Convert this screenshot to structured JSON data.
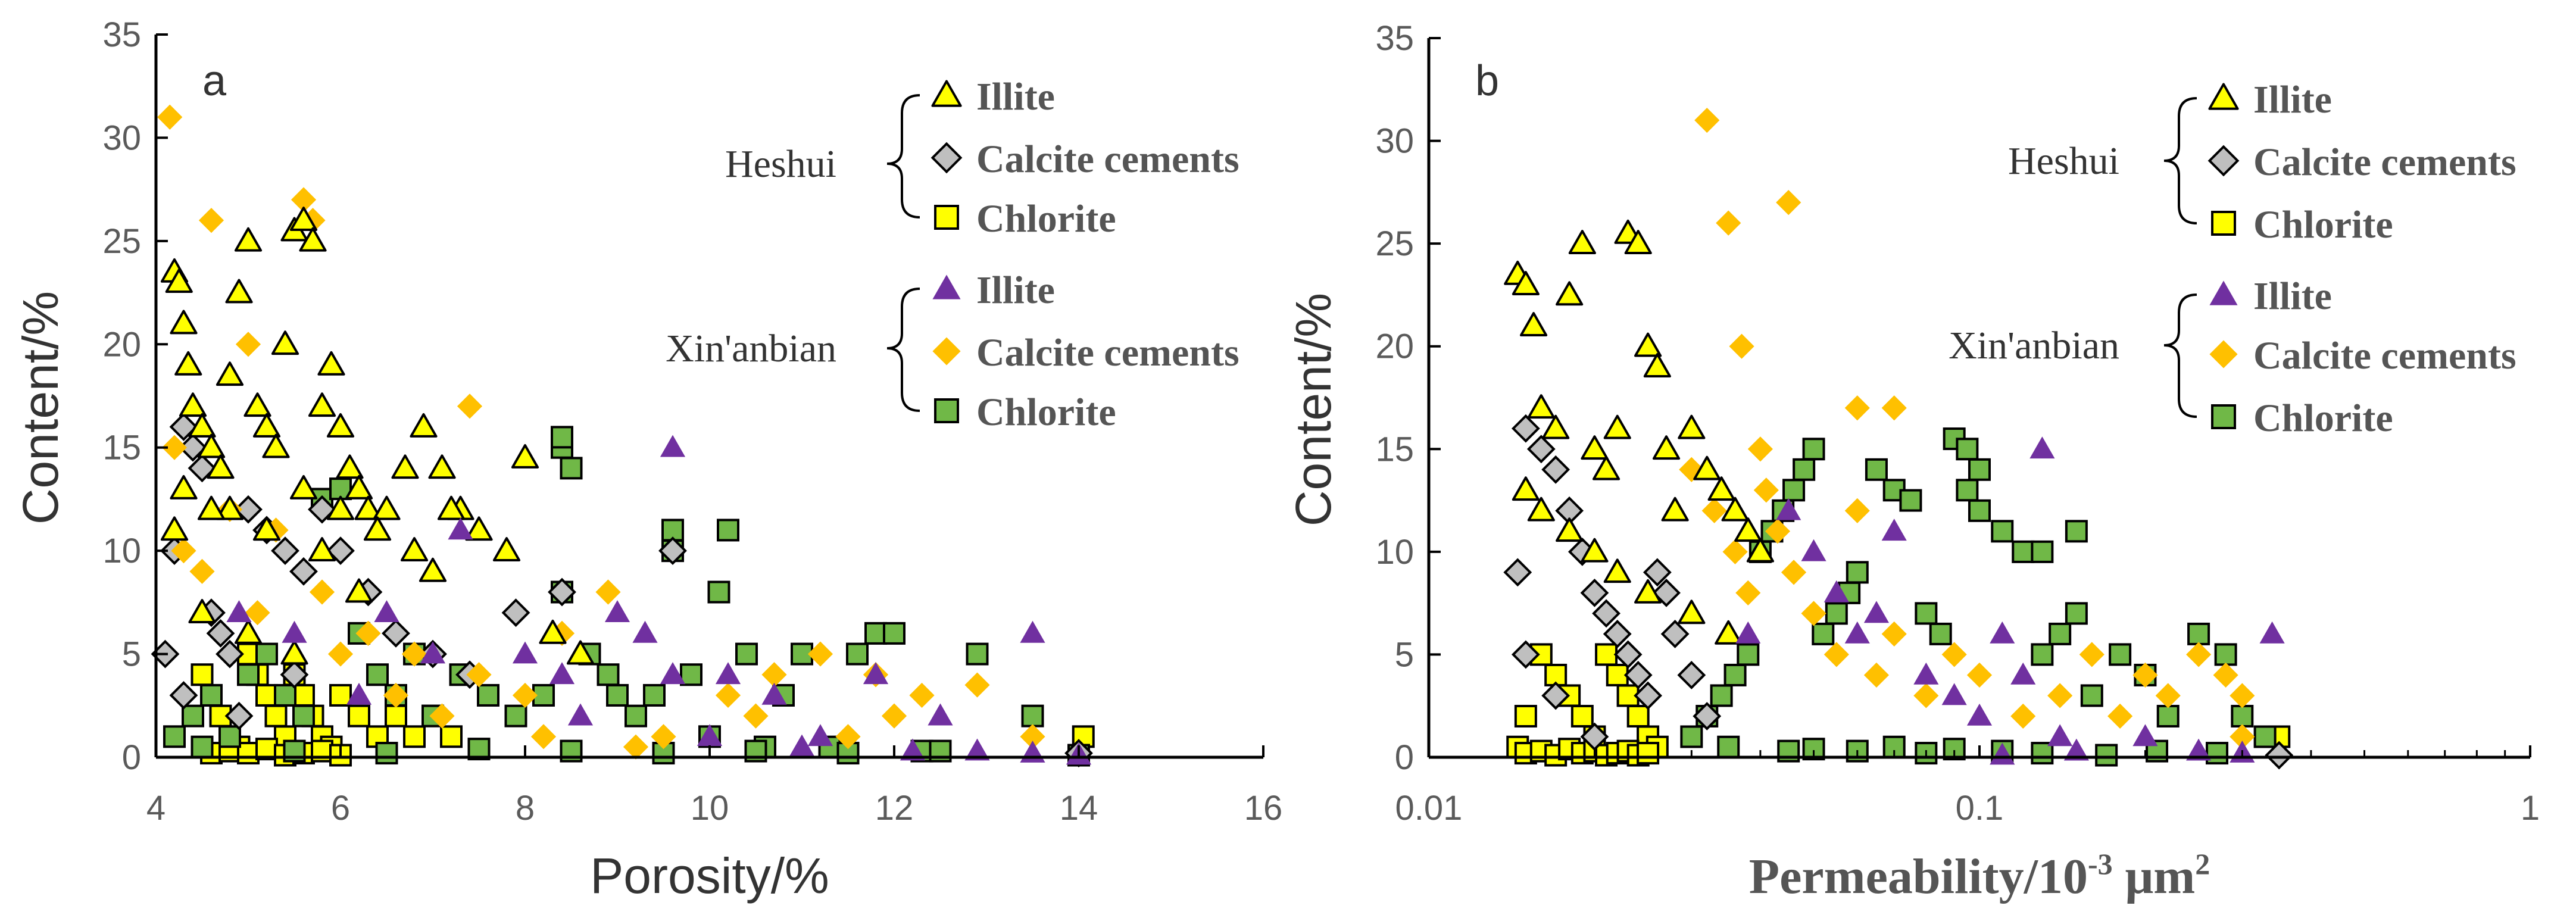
{
  "colors": {
    "illite_heshui": "#ffff00",
    "calcite_heshui": "#bfbfbf",
    "chlorite_heshui": "#ffff00",
    "illite_xinanbian": "#7030a0",
    "calcite_xinanbian": "#ffc000",
    "chlorite_xinanbian": "#70b847",
    "outline": "#000000"
  },
  "legend": {
    "groups": [
      {
        "name": "Heshui",
        "items": [
          {
            "label": "Illite",
            "marker": "triangle-icon",
            "color_key": "illite_heshui",
            "outline": true
          },
          {
            "label": "Calcite cements",
            "marker": "diamond-icon",
            "color_key": "calcite_heshui",
            "outline": true
          },
          {
            "label": "Chlorite",
            "marker": "square-icon",
            "color_key": "chlorite_heshui",
            "outline": true
          }
        ]
      },
      {
        "name": "Xin'anbian",
        "items": [
          {
            "label": "Illite",
            "marker": "triangle-icon",
            "color_key": "illite_xinanbian",
            "outline": false
          },
          {
            "label": "Calcite cements",
            "marker": "diamond-icon",
            "color_key": "calcite_xinanbian",
            "outline": false
          },
          {
            "label": "Chlorite",
            "marker": "square-icon",
            "color_key": "chlorite_xinanbian",
            "outline": true
          }
        ]
      }
    ]
  },
  "chart_data": [
    {
      "panel": "a",
      "type": "scatter",
      "xscale": "linear",
      "xlabel": "Porosity/%",
      "ylabel": "Content/%",
      "xlim": [
        4,
        16
      ],
      "ylim": [
        0,
        35
      ],
      "xticks": [
        4,
        6,
        8,
        10,
        12,
        14,
        16
      ],
      "xtick_labels": [
        "4",
        "6",
        "8",
        "10",
        "12",
        "14",
        "16"
      ],
      "yticks": [
        0,
        5,
        10,
        15,
        20,
        25,
        30,
        35
      ],
      "ytick_labels": [
        "0",
        "5",
        "10",
        "15",
        "20",
        "25",
        "30",
        "35"
      ],
      "series": [
        {
          "name": "Heshui Illite",
          "marker": "triangle",
          "color_key": "illite_heshui",
          "x": [
            4.2,
            4.25,
            4.3,
            4.35,
            4.4,
            4.5,
            4.6,
            4.7,
            4.8,
            4.9,
            5.0,
            5.1,
            5.2,
            5.3,
            5.4,
            5.5,
            5.6,
            5.7,
            5.8,
            5.9,
            6.0,
            6.1,
            6.2,
            6.3,
            6.5,
            6.7,
            6.9,
            7.1,
            7.3,
            7.5,
            7.8,
            8.0,
            8.3,
            8.6,
            4.3,
            4.8,
            5.2,
            5.6,
            6.0,
            6.4,
            6.8,
            7.2,
            4.5,
            5.0,
            5.5,
            6.2,
            7.0,
            4.2,
            4.6,
            5.8
          ],
          "y": [
            23.5,
            23,
            21,
            19,
            17,
            16,
            15,
            14,
            18.5,
            22.5,
            25,
            17,
            16,
            15,
            20,
            25.5,
            26,
            25,
            17,
            19,
            16,
            14,
            13,
            12,
            12,
            14,
            16,
            14,
            12,
            11,
            10,
            14.5,
            6,
            5,
            13,
            12,
            11,
            13,
            12,
            11,
            10,
            12,
            7,
            6,
            5,
            8,
            9,
            11,
            12,
            10
          ]
        },
        {
          "name": "Heshui Calcite cements",
          "marker": "diamond",
          "color_key": "calcite_heshui",
          "x": [
            4.1,
            4.2,
            4.3,
            4.4,
            4.5,
            4.6,
            4.7,
            4.8,
            5.0,
            5.2,
            5.4,
            5.6,
            5.8,
            6.0,
            6.3,
            6.6,
            7.0,
            7.4,
            7.9,
            8.4,
            9.6,
            14.0,
            4.3,
            4.9,
            5.5
          ],
          "y": [
            5,
            10,
            16,
            15,
            14,
            7,
            6,
            5,
            12,
            11,
            10,
            9,
            12,
            10,
            8,
            6,
            5,
            4,
            7,
            8,
            10,
            0.2,
            3,
            2,
            4
          ]
        },
        {
          "name": "Heshui Chlorite",
          "marker": "square",
          "color_key": "chlorite_heshui",
          "x": [
            4.5,
            4.6,
            4.7,
            4.8,
            4.9,
            5.0,
            5.1,
            5.2,
            5.3,
            5.4,
            5.5,
            5.6,
            5.7,
            5.8,
            5.9,
            6.0,
            6.2,
            6.4,
            6.6,
            6.8,
            7.0,
            7.2,
            4.6,
            4.8,
            5.0,
            5.2,
            5.4,
            5.6,
            5.8,
            6.0,
            14.05
          ],
          "y": [
            4,
            3,
            2,
            1,
            0.5,
            5,
            4,
            3,
            2,
            1,
            4,
            3,
            2,
            1,
            0.5,
            3,
            2,
            1,
            2,
            1,
            2,
            1,
            0.2,
            0.3,
            0.2,
            0.4,
            0.1,
            0.2,
            0.3,
            0.1,
            1
          ]
        },
        {
          "name": "Xin'anbian Illite",
          "marker": "triangle",
          "color_key": "illite_xinanbian",
          "x": [
            9.6,
            13.5,
            7.3,
            4.9,
            5.5,
            6.5,
            8.0,
            8.4,
            9.0,
            9.6,
            10.2,
            10.7,
            11.2,
            11.8,
            12.2,
            12.9,
            13.5,
            14.0,
            6.2,
            7.0,
            8.6,
            9.3,
            10.0,
            11.0,
            12.5
          ],
          "y": [
            15,
            6,
            11,
            7,
            6,
            7,
            5,
            4,
            7,
            4,
            4,
            3,
            1,
            4,
            0.3,
            0.3,
            0.2,
            0.1,
            3,
            5,
            2,
            6,
            1,
            0.5,
            2
          ]
        },
        {
          "name": "Xin'anbian Calcite cements",
          "marker": "diamond",
          "color_key": "calcite_xinanbian",
          "x": [
            4.15,
            4.2,
            4.6,
            5.0,
            5.6,
            5.7,
            7.4,
            4.3,
            4.8,
            5.3,
            5.8,
            6.3,
            6.8,
            7.5,
            8.0,
            8.4,
            8.9,
            9.5,
            10.2,
            10.7,
            11.2,
            11.5,
            11.8,
            12.0,
            12.3,
            12.9,
            13.5,
            4.5,
            5.1,
            6.0,
            6.6,
            7.1,
            8.2,
            9.2,
            10.5
          ],
          "y": [
            31,
            15,
            26,
            20,
            27,
            26,
            17,
            10,
            12,
            11,
            8,
            6,
            5,
            4,
            3,
            6,
            8,
            1,
            3,
            4,
            5,
            1,
            4,
            2,
            3,
            3.5,
            1,
            9,
            7,
            5,
            3,
            2,
            1,
            0.5,
            2
          ]
        },
        {
          "name": "Xin'anbian Chlorite",
          "marker": "square",
          "color_key": "chlorite_xinanbian",
          "x": [
            4.2,
            4.4,
            4.6,
            4.8,
            5.0,
            5.2,
            5.4,
            5.6,
            5.8,
            6.0,
            6.2,
            6.4,
            6.6,
            6.8,
            7.0,
            7.3,
            7.6,
            7.9,
            8.2,
            8.4,
            8.5,
            8.7,
            8.9,
            9.0,
            9.2,
            9.4,
            9.6,
            9.8,
            10.0,
            10.2,
            10.4,
            10.6,
            10.8,
            11.0,
            11.3,
            11.6,
            11.8,
            12.0,
            12.3,
            12.9,
            13.5,
            14.0,
            8.4,
            8.4,
            9.6,
            10.1,
            4.5,
            5.5,
            6.5,
            7.5,
            8.5,
            9.5,
            10.5,
            11.5,
            12.5
          ],
          "y": [
            1,
            2,
            3,
            1,
            4,
            5,
            3,
            2,
            12.5,
            13,
            6,
            4,
            3,
            5,
            2,
            4,
            3,
            2,
            3,
            15,
            14,
            5,
            4,
            3,
            2,
            3,
            11,
            4,
            1,
            11,
            5,
            0.5,
            3,
            5,
            0.5,
            5,
            6,
            6,
            0.3,
            5,
            2,
            0.1,
            8,
            15.5,
            10,
            8,
            0.5,
            0.3,
            0.2,
            0.4,
            0.3,
            0.2,
            0.3,
            0.2,
            0.3
          ]
        }
      ]
    },
    {
      "panel": "b",
      "type": "scatter",
      "xscale": "log",
      "xlabel": "Permeability/10",
      "xlabel_sup": "-3",
      "xlabel_unit": " μm",
      "xlabel_sup2": "2",
      "ylabel": "Content/%",
      "xlim": [
        0.01,
        1
      ],
      "ylim": [
        0,
        35
      ],
      "xticks": [
        0.01,
        0.1,
        1
      ],
      "xtick_labels": [
        "0.01",
        "0.1",
        "1"
      ],
      "yticks": [
        0,
        5,
        10,
        15,
        20,
        25,
        30,
        35
      ],
      "ytick_labels": [
        "0",
        "5",
        "10",
        "15",
        "20",
        "25",
        "30",
        "35"
      ],
      "series": [
        {
          "name": "Heshui Illite",
          "marker": "triangle",
          "color_key": "illite_heshui",
          "x": [
            0.0145,
            0.015,
            0.0155,
            0.016,
            0.017,
            0.018,
            0.019,
            0.02,
            0.021,
            0.022,
            0.023,
            0.024,
            0.025,
            0.026,
            0.027,
            0.028,
            0.03,
            0.032,
            0.034,
            0.036,
            0.038,
            0.04,
            0.015,
            0.016,
            0.018,
            0.02,
            0.022,
            0.025,
            0.03,
            0.035
          ],
          "y": [
            23.5,
            23,
            21,
            17,
            16,
            22.5,
            25,
            15,
            14,
            16,
            25.5,
            25,
            20,
            19,
            15,
            12,
            16,
            14,
            13,
            12,
            11,
            10,
            13,
            12,
            11,
            10,
            9,
            8,
            7,
            6
          ]
        },
        {
          "name": "Heshui Calcite cements",
          "marker": "diamond",
          "color_key": "calcite_heshui",
          "x": [
            0.0145,
            0.015,
            0.016,
            0.017,
            0.018,
            0.019,
            0.02,
            0.021,
            0.022,
            0.023,
            0.024,
            0.025,
            0.026,
            0.027,
            0.028,
            0.03,
            0.032,
            0.015,
            0.017,
            0.02,
            0.35
          ],
          "y": [
            9,
            16,
            15,
            14,
            12,
            10,
            8,
            7,
            6,
            5,
            4,
            3,
            9,
            8,
            6,
            4,
            2,
            5,
            3,
            1,
            0.1
          ]
        },
        {
          "name": "Heshui Chlorite",
          "marker": "square",
          "color_key": "chlorite_heshui",
          "x": [
            0.0145,
            0.015,
            0.016,
            0.017,
            0.018,
            0.019,
            0.02,
            0.021,
            0.022,
            0.023,
            0.024,
            0.025,
            0.026,
            0.015,
            0.016,
            0.017,
            0.018,
            0.019,
            0.02,
            0.021,
            0.022,
            0.023,
            0.024,
            0.025,
            0.35
          ],
          "y": [
            0.5,
            2,
            5,
            4,
            3,
            2,
            1,
            5,
            4,
            3,
            2,
            1,
            0.5,
            0.2,
            0.3,
            0.1,
            0.4,
            0.2,
            0.3,
            0.1,
            0.2,
            0.3,
            0.1,
            0.2,
            1
          ]
        },
        {
          "name": "Xin'anbian Illite",
          "marker": "triangle",
          "color_key": "illite_xinanbian",
          "x": [
            0.13,
            0.34,
            0.07,
            0.038,
            0.045,
            0.055,
            0.06,
            0.08,
            0.09,
            0.1,
            0.11,
            0.12,
            0.15,
            0.2,
            0.25,
            0.3,
            0.05,
            0.065,
            0.11,
            0.14
          ],
          "y": [
            15,
            6,
            11,
            6,
            12,
            8,
            6,
            4,
            3,
            2,
            6,
            4,
            0.3,
            1,
            0.3,
            0.2,
            10,
            7,
            0.1,
            1
          ]
        },
        {
          "name": "Xin'anbian Calcite cements",
          "marker": "diamond",
          "color_key": "calcite_xinanbian",
          "x": [
            0.032,
            0.035,
            0.037,
            0.04,
            0.045,
            0.06,
            0.07,
            0.03,
            0.033,
            0.036,
            0.038,
            0.041,
            0.043,
            0.046,
            0.05,
            0.055,
            0.06,
            0.065,
            0.07,
            0.08,
            0.09,
            0.1,
            0.12,
            0.14,
            0.16,
            0.18,
            0.2,
            0.22,
            0.25,
            0.28,
            0.3,
            0.3
          ],
          "y": [
            31,
            26,
            20,
            15,
            27,
            17,
            17,
            14,
            12,
            10,
            8,
            13,
            11,
            9,
            7,
            5,
            12,
            4,
            6,
            3,
            5,
            4,
            2,
            3,
            5,
            2,
            4,
            3,
            5,
            4,
            3,
            1
          ]
        },
        {
          "name": "Xin'anbian Chlorite",
          "marker": "square",
          "color_key": "chlorite_xinanbian",
          "x": [
            0.03,
            0.032,
            0.034,
            0.036,
            0.038,
            0.04,
            0.042,
            0.044,
            0.046,
            0.048,
            0.05,
            0.052,
            0.055,
            0.058,
            0.06,
            0.065,
            0.07,
            0.075,
            0.08,
            0.085,
            0.09,
            0.095,
            0.1,
            0.11,
            0.12,
            0.13,
            0.14,
            0.15,
            0.16,
            0.18,
            0.2,
            0.22,
            0.25,
            0.28,
            0.3,
            0.33,
            0.095,
            0.1,
            0.13,
            0.15,
            0.06,
            0.07,
            0.08,
            0.09,
            0.11,
            0.13,
            0.17,
            0.21,
            0.27,
            0.035,
            0.045,
            0.05
          ],
          "y": [
            1,
            2,
            3,
            4,
            5,
            10,
            11,
            12,
            13,
            14,
            15,
            6,
            7,
            8,
            9,
            14,
            13,
            12.5,
            7,
            6,
            15.5,
            15,
            14,
            11,
            10,
            5,
            6,
            7,
            3,
            5,
            4,
            2,
            6,
            5,
            2,
            1,
            13,
            12,
            10,
            11,
            0.3,
            0.5,
            0.2,
            0.4,
            0.3,
            0.2,
            0.1,
            0.3,
            0.2,
            0.5,
            0.3,
            0.4
          ]
        }
      ]
    }
  ]
}
